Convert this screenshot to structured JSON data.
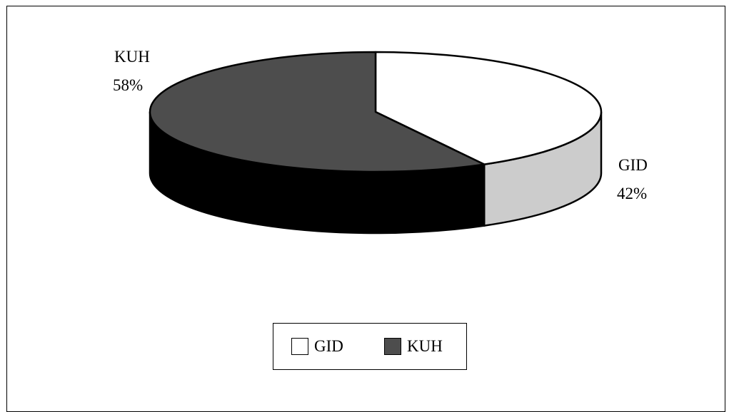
{
  "chart_data": {
    "type": "pie",
    "style": "3d-pie",
    "slices": [
      {
        "label": "GID",
        "percent_label": "42%",
        "value": 42,
        "color": "#ffffff",
        "side_color": "#cccccc"
      },
      {
        "label": "KUH",
        "percent_label": "58%",
        "value": 58,
        "color": "#4d4d4d",
        "side_color": "#000000"
      }
    ],
    "legend": {
      "placement": "bottom",
      "items": [
        "GID",
        "KUH"
      ]
    }
  }
}
